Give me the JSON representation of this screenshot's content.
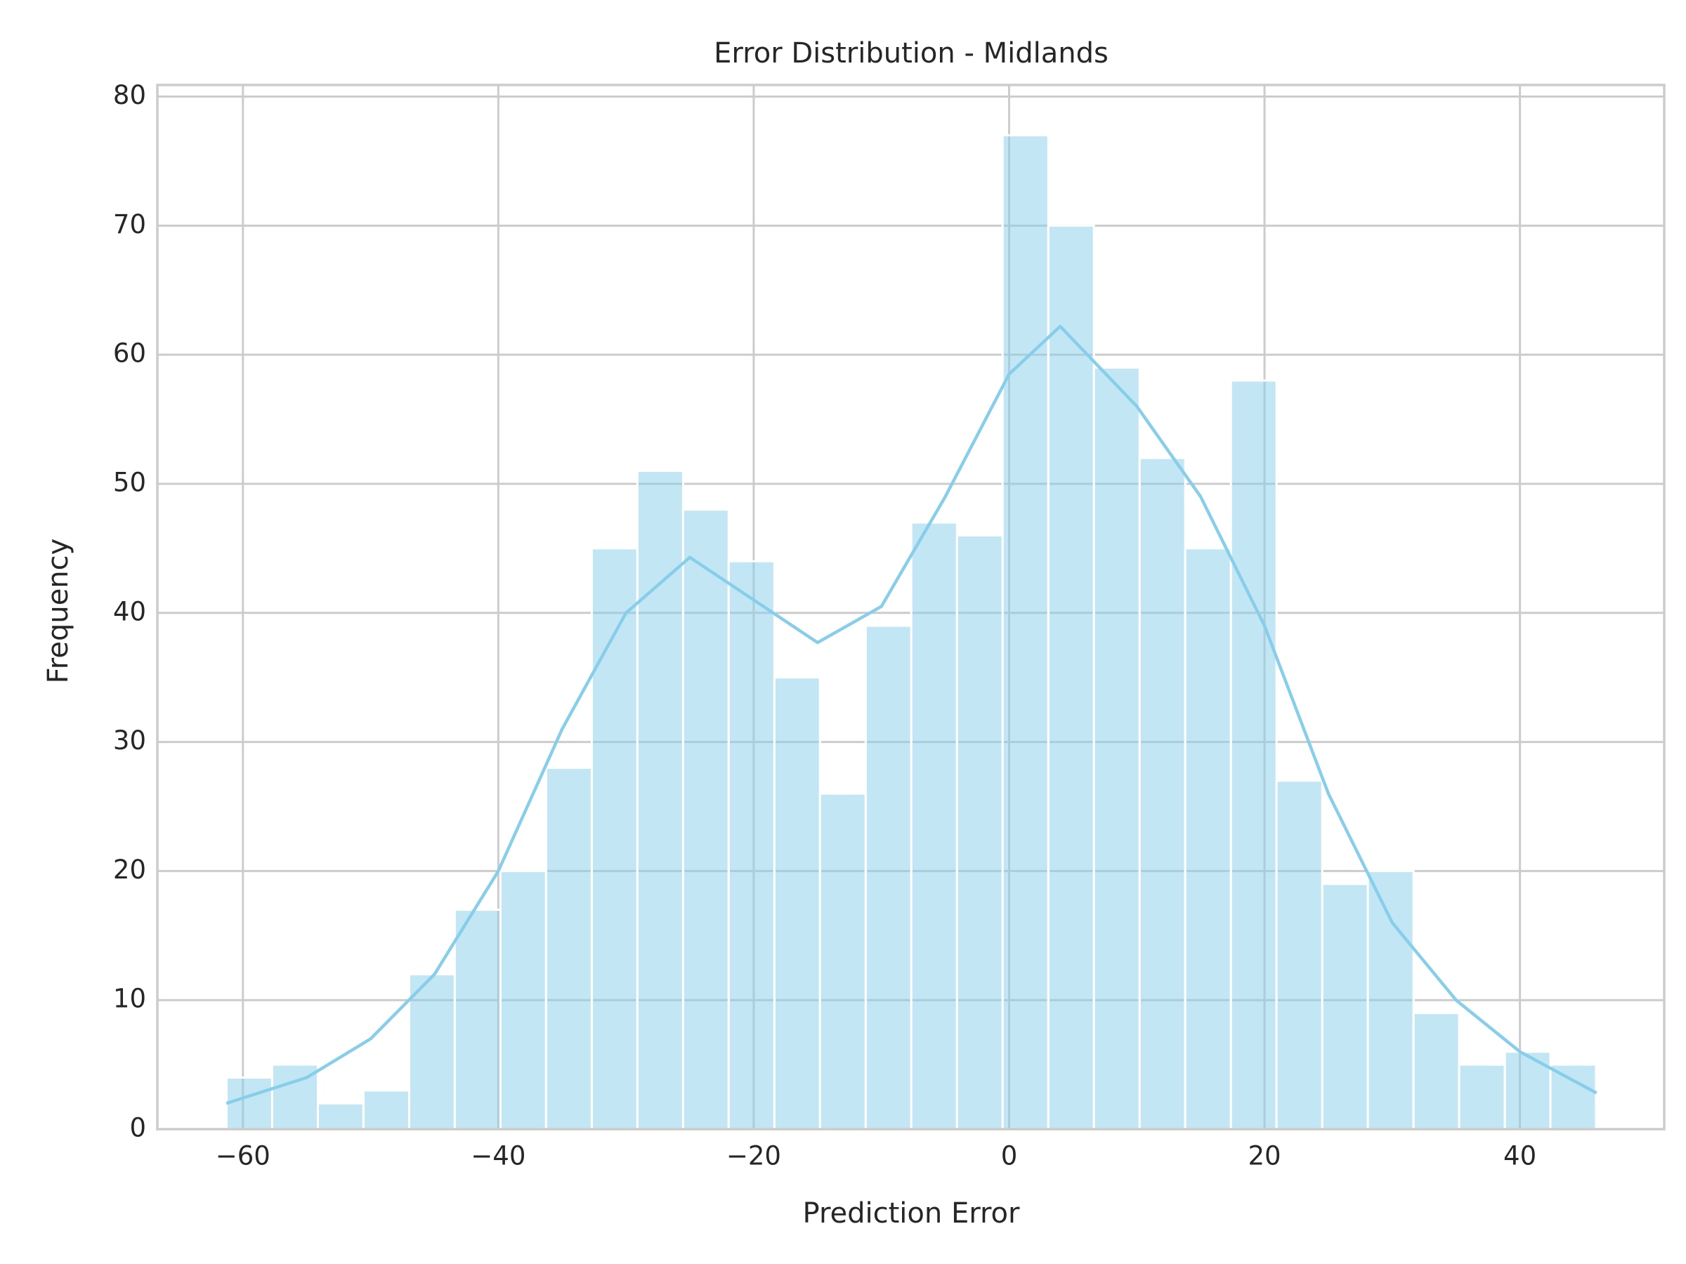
{
  "chart_data": {
    "type": "histogram",
    "title": "Error Distribution - Midlands",
    "x_label": "Prediction Error",
    "y_label": "Frequency",
    "bins": [
      -61.28,
      -57.71,
      -54.13,
      -50.56,
      -46.98,
      -43.41,
      -39.83,
      -36.26,
      -32.68,
      -29.11,
      -25.53,
      -21.96,
      -18.38,
      -14.81,
      -11.23,
      -7.66,
      -4.08,
      -0.51,
      3.07,
      6.64,
      10.22,
      13.79,
      17.37,
      20.94,
      24.52,
      28.09,
      31.67,
      35.24,
      38.82,
      42.39,
      45.96
    ],
    "counts": [
      4,
      5,
      2,
      3,
      12,
      17,
      20,
      28,
      45,
      51,
      48,
      44,
      35,
      26,
      39,
      47,
      46,
      77,
      70,
      59,
      52,
      45,
      58,
      27,
      19,
      20,
      9,
      5,
      6,
      5
    ],
    "color": "#87ceeb",
    "kde": {
      "x": [
        -61.3,
        -55,
        -50,
        -45,
        -40,
        -35,
        -30,
        -25,
        -20,
        -15,
        -10,
        -5,
        0,
        4,
        10,
        15,
        20,
        25,
        30,
        35,
        40,
        46
      ],
      "values": [
        2,
        4,
        7,
        12,
        20,
        31,
        40,
        44.3,
        41,
        37.7,
        40.5,
        49,
        58.5,
        62.2,
        56,
        49,
        39,
        26,
        16,
        10,
        6,
        2.8
      ]
    },
    "xlim": [
      -66.7,
      51.3
    ],
    "ylim": [
      0,
      80.9
    ],
    "xticks": [
      {
        "value": -60,
        "label": "−60"
      },
      {
        "value": -40,
        "label": "−40"
      },
      {
        "value": -20,
        "label": "−20"
      },
      0,
      20,
      40
    ],
    "yticks": [
      0,
      10,
      20,
      30,
      40,
      50,
      60,
      70,
      80
    ],
    "grid": true
  }
}
